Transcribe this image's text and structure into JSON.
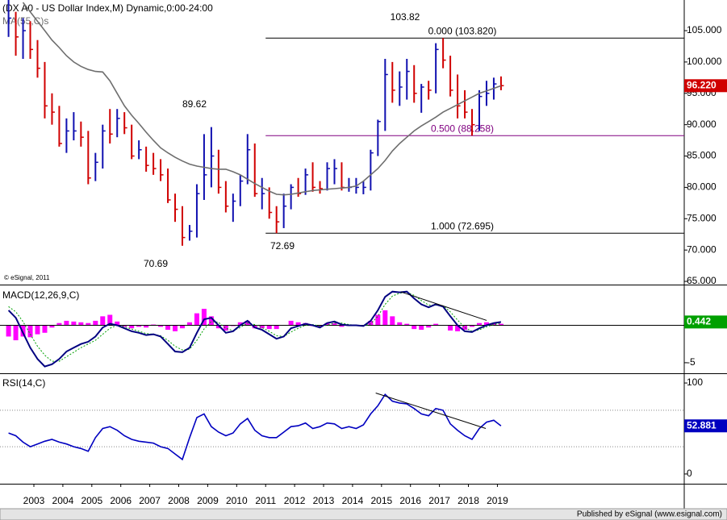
{
  "chart_data": [
    {
      "type": "ohlc",
      "title": "(DX A0 - US Dollar Index,M) Dynamic,0:00-24:00",
      "copyright": "© eSignal, 2011",
      "x": [
        2002.125,
        2002.375,
        2002.625,
        2002.875,
        2003.125,
        2003.375,
        2003.625,
        2003.875,
        2004.125,
        2004.375,
        2004.625,
        2004.875,
        2005.125,
        2005.375,
        2005.625,
        2005.875,
        2006.125,
        2006.375,
        2006.625,
        2006.875,
        2007.125,
        2007.375,
        2007.625,
        2007.875,
        2008.125,
        2008.375,
        2008.625,
        2008.875,
        2009.125,
        2009.375,
        2009.625,
        2009.875,
        2010.125,
        2010.375,
        2010.625,
        2010.875,
        2011.125,
        2011.375,
        2011.625,
        2011.875,
        2012.125,
        2012.375,
        2012.625,
        2012.875,
        2013.125,
        2013.375,
        2013.625,
        2013.875,
        2014.125,
        2014.375,
        2014.625,
        2014.875,
        2015.125,
        2015.375,
        2015.625,
        2015.875,
        2016.125,
        2016.375,
        2016.625,
        2016.875,
        2017.125,
        2017.375,
        2017.625,
        2017.875,
        2018.125,
        2018.375,
        2018.625,
        2018.875,
        2019.125
      ],
      "high": [
        110,
        108,
        107,
        106.5,
        103.5,
        100,
        95,
        93,
        91,
        92,
        90.5,
        89,
        85.5,
        90,
        92.5,
        92.5,
        92,
        90,
        87.5,
        86.5,
        85.5,
        84.5,
        83,
        79,
        77,
        74,
        80.5,
        88.5,
        89.62,
        86,
        81,
        79,
        82,
        88.5,
        87,
        81.5,
        80,
        77,
        79,
        80.5,
        81.5,
        83,
        84,
        81,
        84,
        84.5,
        84,
        81.5,
        81.5,
        81,
        86,
        90.8,
        100.5,
        100,
        98.5,
        100.5,
        99.5,
        96.5,
        97,
        103,
        103.82,
        101,
        98,
        95.5,
        92.5,
        95.5,
        97,
        97.5,
        97.7
      ],
      "low": [
        104,
        101,
        100.5,
        100.5,
        97.5,
        91,
        90,
        86.5,
        85.5,
        87.5,
        86.5,
        80.5,
        81,
        83,
        87,
        88,
        88.5,
        84.5,
        84.5,
        82.5,
        82,
        81,
        77.5,
        74.5,
        70.69,
        71.5,
        72,
        78,
        80,
        79,
        76,
        74.5,
        77,
        80.5,
        78.5,
        76.5,
        75,
        72.69,
        73.5,
        76.5,
        78.5,
        78.8,
        79.3,
        79,
        79.5,
        80.5,
        79.5,
        79.3,
        79,
        78.9,
        79.5,
        85,
        89,
        93.5,
        93,
        94,
        93.5,
        91.9,
        94,
        95,
        99,
        94.5,
        91,
        91,
        88.26,
        89,
        93,
        94,
        95.5
      ],
      "close": [
        107,
        104,
        105,
        102,
        99,
        93,
        92,
        87,
        89,
        89,
        88,
        81.5,
        84,
        89,
        88.5,
        91,
        89.5,
        85,
        86,
        83.5,
        83,
        82,
        78,
        76.5,
        72,
        73,
        79,
        82,
        85,
        80,
        77,
        77.8,
        81,
        86,
        79,
        79,
        76,
        74.5,
        77,
        80,
        79,
        82,
        80,
        79.8,
        83,
        83,
        80,
        80,
        80,
        80,
        85.5,
        90.5,
        98,
        95.5,
        96,
        98.5,
        95,
        96,
        95.5,
        102,
        100.3,
        95.5,
        93,
        92,
        90,
        94.5,
        95,
        96.5,
        96.22
      ],
      "last_label": "96.220",
      "up_color": "#1010b0",
      "down_color": "#d00000",
      "series": [
        {
          "name": "MA(55,C)s",
          "color": "#6e6e6e",
          "values": [
            null,
            null,
            109.5,
            108,
            106.5,
            105,
            103.5,
            102.3,
            101,
            100,
            99.3,
            98.8,
            98.5,
            98.4,
            97,
            95,
            93,
            91.5,
            90.2,
            88.8,
            87.5,
            86.3,
            85.5,
            84.8,
            84.2,
            83.7,
            83.4,
            83.2,
            83,
            82.9,
            82.9,
            82.5,
            82,
            81.3,
            80.6,
            80,
            79.4,
            78.9,
            78.8,
            78.9,
            79.1,
            79.3,
            79.5,
            79.6,
            79.7,
            79.8,
            79.9,
            80,
            80.2,
            81,
            82,
            83,
            84.3,
            85.8,
            87,
            88,
            89,
            89.8,
            90.5,
            91.2,
            92,
            92.6,
            93.2,
            93.8,
            94.4,
            95,
            95.4,
            95.8,
            96.2
          ]
        }
      ],
      "xlim": [
        2001.83,
        2025.45
      ],
      "ylim": [
        64.49,
        109.89
      ],
      "yticks": [
        {
          "value": 65,
          "label": "65.000"
        },
        {
          "value": 70,
          "label": "70.000"
        },
        {
          "value": 75,
          "label": "75.000"
        },
        {
          "value": 80,
          "label": "80.000"
        },
        {
          "value": 85,
          "label": "85.000"
        },
        {
          "value": 90,
          "label": "90.000"
        },
        {
          "value": 95,
          "label": "95.000"
        },
        {
          "value": 100,
          "label": "100.000"
        },
        {
          "value": 105,
          "label": "105.000"
        }
      ],
      "fib_from_x": 2011,
      "fib_levels": [
        {
          "value": 103.82,
          "label": "0.000 (103.820)",
          "color": "#000000"
        },
        {
          "value": 88.258,
          "label": "0.500 (88.258)",
          "color": "#800080"
        },
        {
          "value": 72.695,
          "label": "1.000 (72.695)",
          "color": "#000000"
        }
      ],
      "annotations": [
        "103.82",
        "89.62",
        "70.69",
        "72.69"
      ]
    },
    {
      "type": "macd",
      "title": "MACD(12,26,9,C)",
      "x": [
        2002.125,
        2002.375,
        2002.625,
        2002.875,
        2003.125,
        2003.375,
        2003.625,
        2003.875,
        2004.125,
        2004.375,
        2004.625,
        2004.875,
        2005.125,
        2005.375,
        2005.625,
        2005.875,
        2006.125,
        2006.375,
        2006.625,
        2006.875,
        2007.125,
        2007.375,
        2007.625,
        2007.875,
        2008.125,
        2008.375,
        2008.625,
        2008.875,
        2009.125,
        2009.375,
        2009.625,
        2009.875,
        2010.125,
        2010.375,
        2010.625,
        2010.875,
        2011.125,
        2011.375,
        2011.625,
        2011.875,
        2012.125,
        2012.375,
        2012.625,
        2012.875,
        2013.125,
        2013.375,
        2013.625,
        2013.875,
        2014.125,
        2014.375,
        2014.625,
        2014.875,
        2015.125,
        2015.375,
        2015.625,
        2015.875,
        2016.125,
        2016.375,
        2016.625,
        2016.875,
        2017.125,
        2017.375,
        2017.625,
        2017.875,
        2018.125,
        2018.375,
        2018.625,
        2018.875,
        2019.125
      ],
      "macd": [
        2,
        1,
        -1,
        -3,
        -4.5,
        -5.5,
        -5.2,
        -4.5,
        -3.5,
        -3,
        -2.5,
        -2.2,
        -1.5,
        -0.3,
        0.2,
        0,
        -0.4,
        -0.8,
        -1,
        -1.3,
        -1.2,
        -1.5,
        -2.5,
        -3.5,
        -3.6,
        -3,
        -1,
        0.8,
        1,
        0,
        -1,
        -0.8,
        0,
        0.6,
        -0.3,
        -0.6,
        -1.2,
        -1.8,
        -1.5,
        -0.4,
        -0.1,
        0.2,
        0,
        -0.3,
        0.3,
        0.5,
        0.1,
        0,
        0,
        -0.1,
        0.6,
        2,
        3.8,
        4.5,
        4.4,
        4.5,
        3.6,
        2.8,
        2.4,
        2.8,
        2.5,
        1.2,
        0,
        -0.8,
        -0.9,
        -0.4,
        0,
        0.3,
        0.442
      ],
      "signal": [
        2.5,
        1.8,
        0.5,
        -1.2,
        -2.8,
        -4,
        -4.8,
        -4.8,
        -4.2,
        -3.6,
        -3,
        -2.5,
        -2,
        -1.2,
        -0.4,
        0,
        -0.2,
        -0.5,
        -0.8,
        -1.1,
        -1.2,
        -1.4,
        -2,
        -2.8,
        -3.3,
        -3.2,
        -2,
        -0.5,
        0.5,
        0.4,
        -0.4,
        -0.7,
        -0.3,
        0.3,
        0.1,
        -0.3,
        -0.8,
        -1.4,
        -1.5,
        -0.9,
        -0.4,
        0,
        0.1,
        -0.1,
        0,
        0.3,
        0.3,
        0.1,
        0,
        -0.1,
        0.2,
        1.2,
        2.8,
        3.9,
        4.3,
        4.4,
        4,
        3.3,
        2.7,
        2.7,
        2.6,
        1.8,
        0.7,
        -0.3,
        -0.8,
        -0.6,
        -0.2,
        0.1,
        0.3
      ],
      "histogram": [
        -1.5,
        -2,
        -1.5,
        -1.6,
        -1.2,
        -1,
        -0.3,
        0.3,
        0.6,
        0.5,
        0.4,
        0.3,
        0.6,
        1.2,
        1.4,
        0.5,
        -0.2,
        -0.4,
        -0.2,
        -0.3,
        0.1,
        -0.2,
        -0.6,
        -0.8,
        -0.4,
        0.4,
        1.6,
        2.2,
        1.2,
        -0.4,
        -0.7,
        -0.1,
        0.4,
        0.6,
        -0.4,
        -0.4,
        -0.5,
        -0.5,
        0,
        0.6,
        0.4,
        0.3,
        -0.1,
        -0.2,
        0.3,
        0.3,
        -0.2,
        -0.1,
        0,
        0,
        0.6,
        1.4,
        2,
        1.2,
        0.4,
        0.2,
        -0.5,
        -0.6,
        -0.3,
        0.2,
        0,
        -0.7,
        -0.8,
        -0.6,
        -0.2,
        0.3,
        0.4,
        0.3,
        0.2
      ],
      "macd_color": "#000080",
      "signal_color": "#00a000",
      "histogram_color": "#ff00ff",
      "label_color": "#00a000",
      "trendline": {
        "x": [
          2015.67,
          2018.63
        ],
        "y": [
          4.46,
          0.65
        ]
      },
      "xlim": [
        2001.83,
        2025.45
      ],
      "ylim": [
        -6.41,
        5.33
      ],
      "yticks": [
        -5
      ]
    },
    {
      "type": "line",
      "title": "RSI(14,C)",
      "x": [
        2002.125,
        2002.375,
        2002.625,
        2002.875,
        2003.125,
        2003.375,
        2003.625,
        2003.875,
        2004.125,
        2004.375,
        2004.625,
        2004.875,
        2005.125,
        2005.375,
        2005.625,
        2005.875,
        2006.125,
        2006.375,
        2006.625,
        2006.875,
        2007.125,
        2007.375,
        2007.625,
        2007.875,
        2008.125,
        2008.375,
        2008.625,
        2008.875,
        2009.125,
        2009.375,
        2009.625,
        2009.875,
        2010.125,
        2010.375,
        2010.625,
        2010.875,
        2011.125,
        2011.375,
        2011.625,
        2011.875,
        2012.125,
        2012.375,
        2012.625,
        2012.875,
        2013.125,
        2013.375,
        2013.625,
        2013.875,
        2014.125,
        2014.375,
        2014.625,
        2014.875,
        2015.125,
        2015.375,
        2015.625,
        2015.875,
        2016.125,
        2016.375,
        2016.625,
        2016.875,
        2017.125,
        2017.375,
        2017.625,
        2017.875,
        2018.125,
        2018.375,
        2018.625,
        2018.875,
        2019.125
      ],
      "values": [
        45,
        42,
        35,
        30,
        33,
        36,
        38,
        35,
        33,
        30,
        28,
        25,
        40,
        50,
        52,
        48,
        42,
        38,
        36,
        35,
        34,
        30,
        28,
        22,
        16,
        40,
        62,
        66,
        52,
        46,
        42,
        45,
        55,
        61,
        48,
        42,
        40,
        40,
        46,
        52,
        53,
        56,
        50,
        52,
        56,
        55,
        50,
        52,
        50,
        54,
        66,
        75,
        87.5,
        80,
        78,
        77,
        72,
        66,
        64,
        72,
        70,
        55,
        48,
        42,
        38,
        50,
        57,
        59,
        52.881
      ],
      "color": "#0000c0",
      "trendline": {
        "x": [
          2014.8,
          2018.6
        ],
        "y": [
          89,
          50
        ]
      },
      "levels": [
        30,
        70
      ],
      "xlim": [
        2001.83,
        2025.45
      ],
      "ylim": [
        -10.7,
        109.8
      ],
      "yticks": [
        0,
        100
      ],
      "xticks": [
        2003,
        2004,
        2005,
        2006,
        2007,
        2008,
        2009,
        2010,
        2011,
        2012,
        2013,
        2014,
        2015,
        2016,
        2017,
        2018,
        2019
      ]
    }
  ],
  "footer": "Published by eSignal (www.esignal.com)"
}
